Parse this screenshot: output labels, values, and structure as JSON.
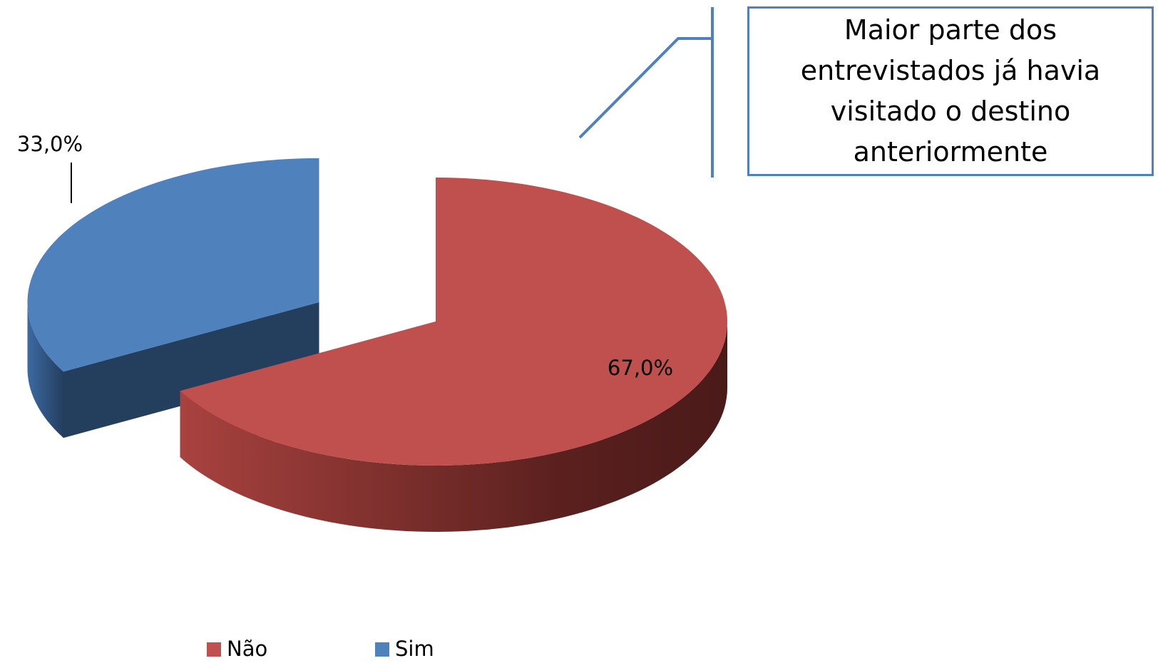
{
  "chart_data": {
    "type": "pie",
    "categories": [
      "Não",
      "Sim"
    ],
    "values": [
      67,
      33
    ],
    "value_labels": [
      "67,0%",
      "33,0%"
    ],
    "colors": [
      "#c0504d",
      "#4f81bd"
    ],
    "annotation": "Maior parte dos entrevistados já havia visitado o destino anteriormente",
    "legend": "bottom"
  }
}
